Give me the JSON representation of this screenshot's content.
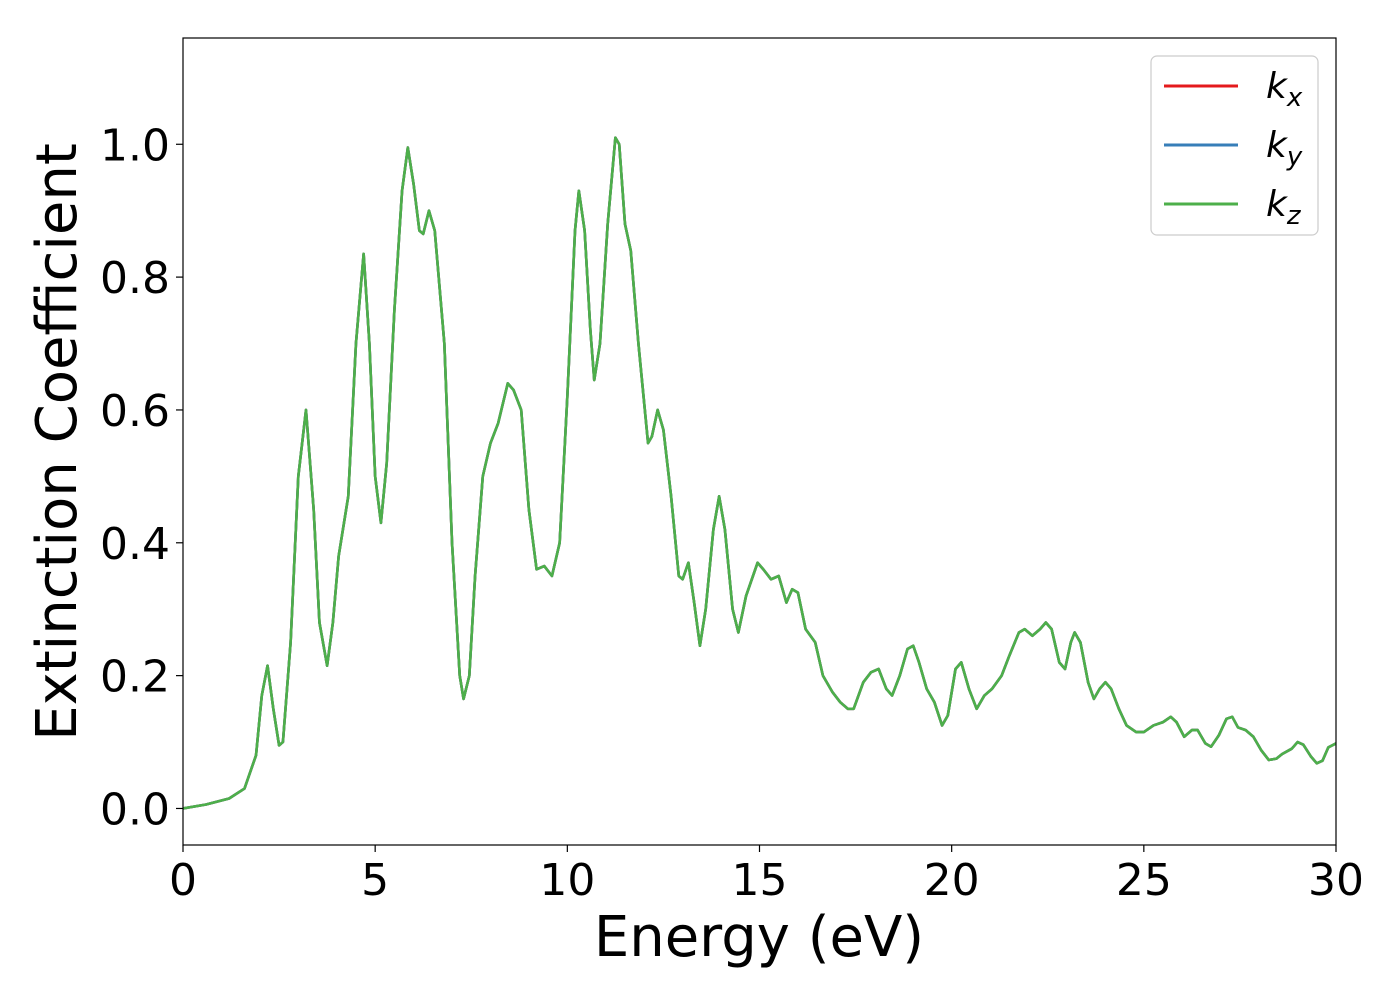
{
  "chart_data": {
    "type": "line",
    "title": "",
    "xlabel": "Energy (eV)",
    "ylabel": "Extinction Coefficient",
    "xlim": [
      0,
      30
    ],
    "ylim": [
      -0.055,
      1.16
    ],
    "x_ticks": [
      0,
      5,
      10,
      15,
      20,
      25,
      30
    ],
    "x_tick_labels": [
      "0",
      "5",
      "10",
      "15",
      "20",
      "25",
      "30"
    ],
    "y_ticks": [
      0.0,
      0.2,
      0.4,
      0.6,
      0.8,
      1.0
    ],
    "y_tick_labels": [
      "0.0",
      "0.2",
      "0.4",
      "0.6",
      "0.8",
      "1.0"
    ],
    "grid": false,
    "legend_position": "top-right",
    "series": [
      {
        "name": "k_x",
        "legend_base": "k",
        "legend_sub": "x",
        "color": "#e41a1c",
        "points": [
          [
            0,
            0
          ],
          [
            0.6,
            0.006
          ],
          [
            1.2,
            0.015
          ],
          [
            1.6,
            0.03
          ],
          [
            1.9,
            0.08
          ],
          [
            2.05,
            0.17
          ],
          [
            2.2,
            0.215
          ],
          [
            2.35,
            0.15
          ],
          [
            2.5,
            0.095
          ],
          [
            2.6,
            0.1
          ],
          [
            2.8,
            0.25
          ],
          [
            3.0,
            0.5
          ],
          [
            3.2,
            0.6
          ],
          [
            3.4,
            0.45
          ],
          [
            3.55,
            0.28
          ],
          [
            3.75,
            0.215
          ],
          [
            3.9,
            0.28
          ],
          [
            4.05,
            0.38
          ],
          [
            4.3,
            0.47
          ],
          [
            4.5,
            0.7
          ],
          [
            4.7,
            0.835
          ],
          [
            4.85,
            0.7
          ],
          [
            5.0,
            0.5
          ],
          [
            5.15,
            0.43
          ],
          [
            5.3,
            0.52
          ],
          [
            5.5,
            0.75
          ],
          [
            5.7,
            0.93
          ],
          [
            5.85,
            0.995
          ],
          [
            6.0,
            0.94
          ],
          [
            6.15,
            0.87
          ],
          [
            6.25,
            0.865
          ],
          [
            6.4,
            0.9
          ],
          [
            6.55,
            0.87
          ],
          [
            6.8,
            0.7
          ],
          [
            7.0,
            0.4
          ],
          [
            7.2,
            0.2
          ],
          [
            7.3,
            0.165
          ],
          [
            7.45,
            0.2
          ],
          [
            7.6,
            0.35
          ],
          [
            7.8,
            0.5
          ],
          [
            8.0,
            0.55
          ],
          [
            8.2,
            0.58
          ],
          [
            8.45,
            0.64
          ],
          [
            8.6,
            0.63
          ],
          [
            8.8,
            0.6
          ],
          [
            9.0,
            0.45
          ],
          [
            9.2,
            0.36
          ],
          [
            9.4,
            0.365
          ],
          [
            9.6,
            0.35
          ],
          [
            9.8,
            0.4
          ],
          [
            10.0,
            0.62
          ],
          [
            10.2,
            0.87
          ],
          [
            10.3,
            0.93
          ],
          [
            10.45,
            0.87
          ],
          [
            10.6,
            0.72
          ],
          [
            10.7,
            0.645
          ],
          [
            10.85,
            0.7
          ],
          [
            11.05,
            0.88
          ],
          [
            11.25,
            1.01
          ],
          [
            11.35,
            1.0
          ],
          [
            11.5,
            0.88
          ],
          [
            11.65,
            0.84
          ],
          [
            11.85,
            0.7
          ],
          [
            12.1,
            0.55
          ],
          [
            12.2,
            0.56
          ],
          [
            12.35,
            0.6
          ],
          [
            12.5,
            0.57
          ],
          [
            12.7,
            0.47
          ],
          [
            12.9,
            0.35
          ],
          [
            13.0,
            0.345
          ],
          [
            13.15,
            0.37
          ],
          [
            13.3,
            0.31
          ],
          [
            13.45,
            0.245
          ],
          [
            13.6,
            0.3
          ],
          [
            13.8,
            0.42
          ],
          [
            13.95,
            0.47
          ],
          [
            14.1,
            0.42
          ],
          [
            14.3,
            0.3
          ],
          [
            14.45,
            0.265
          ],
          [
            14.65,
            0.32
          ],
          [
            14.95,
            0.37
          ],
          [
            15.1,
            0.36
          ],
          [
            15.3,
            0.345
          ],
          [
            15.5,
            0.35
          ],
          [
            15.7,
            0.31
          ],
          [
            15.85,
            0.33
          ],
          [
            16.0,
            0.325
          ],
          [
            16.2,
            0.27
          ],
          [
            16.45,
            0.25
          ],
          [
            16.65,
            0.2
          ],
          [
            16.9,
            0.175
          ],
          [
            17.1,
            0.16
          ],
          [
            17.3,
            0.15
          ],
          [
            17.45,
            0.15
          ],
          [
            17.7,
            0.19
          ],
          [
            17.9,
            0.205
          ],
          [
            18.1,
            0.21
          ],
          [
            18.3,
            0.18
          ],
          [
            18.45,
            0.17
          ],
          [
            18.65,
            0.2
          ],
          [
            18.85,
            0.24
          ],
          [
            19.0,
            0.245
          ],
          [
            19.15,
            0.22
          ],
          [
            19.35,
            0.18
          ],
          [
            19.55,
            0.16
          ],
          [
            19.75,
            0.125
          ],
          [
            19.9,
            0.14
          ],
          [
            20.1,
            0.21
          ],
          [
            20.25,
            0.22
          ],
          [
            20.45,
            0.18
          ],
          [
            20.65,
            0.15
          ],
          [
            20.85,
            0.17
          ],
          [
            21.05,
            0.18
          ],
          [
            21.3,
            0.2
          ],
          [
            21.5,
            0.23
          ],
          [
            21.75,
            0.265
          ],
          [
            21.9,
            0.27
          ],
          [
            22.1,
            0.26
          ],
          [
            22.3,
            0.27
          ],
          [
            22.45,
            0.28
          ],
          [
            22.6,
            0.27
          ],
          [
            22.8,
            0.22
          ],
          [
            22.95,
            0.21
          ],
          [
            23.1,
            0.25
          ],
          [
            23.2,
            0.265
          ],
          [
            23.35,
            0.25
          ],
          [
            23.55,
            0.19
          ],
          [
            23.7,
            0.165
          ],
          [
            23.85,
            0.18
          ],
          [
            24.0,
            0.19
          ],
          [
            24.15,
            0.18
          ],
          [
            24.35,
            0.15
          ],
          [
            24.55,
            0.125
          ],
          [
            24.8,
            0.115
          ],
          [
            25.0,
            0.115
          ],
          [
            25.25,
            0.125
          ],
          [
            25.5,
            0.13
          ],
          [
            25.7,
            0.138
          ],
          [
            25.85,
            0.13
          ],
          [
            26.05,
            0.108
          ],
          [
            26.25,
            0.118
          ],
          [
            26.4,
            0.118
          ],
          [
            26.6,
            0.098
          ],
          [
            26.75,
            0.093
          ],
          [
            26.95,
            0.11
          ],
          [
            27.15,
            0.135
          ],
          [
            27.3,
            0.138
          ],
          [
            27.45,
            0.122
          ],
          [
            27.65,
            0.118
          ],
          [
            27.85,
            0.108
          ],
          [
            28.05,
            0.088
          ],
          [
            28.25,
            0.073
          ],
          [
            28.45,
            0.075
          ],
          [
            28.6,
            0.082
          ],
          [
            28.85,
            0.09
          ],
          [
            29.0,
            0.1
          ],
          [
            29.15,
            0.096
          ],
          [
            29.35,
            0.078
          ],
          [
            29.5,
            0.068
          ],
          [
            29.65,
            0.072
          ],
          [
            29.8,
            0.092
          ],
          [
            30.0,
            0.098
          ]
        ]
      },
      {
        "name": "k_y",
        "legend_base": "k",
        "legend_sub": "y",
        "color": "#377eb8",
        "same_as": 0
      },
      {
        "name": "k_z",
        "legend_base": "k",
        "legend_sub": "z",
        "color": "#4daf4a",
        "same_as": 0
      }
    ]
  }
}
